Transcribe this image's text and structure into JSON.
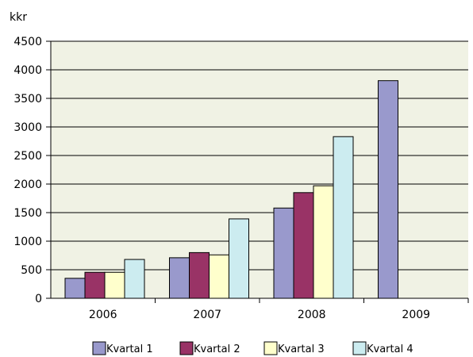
{
  "chart_data": {
    "type": "bar",
    "ylabel": "kkr",
    "categories": [
      "2006",
      "2007",
      "2008",
      "2009"
    ],
    "series": [
      {
        "name": "Kvartal 1",
        "values": [
          350,
          710,
          1580,
          3810
        ]
      },
      {
        "name": "Kvartal 2",
        "values": [
          455,
          800,
          1850,
          null
        ]
      },
      {
        "name": "Kvartal 3",
        "values": [
          455,
          760,
          1970,
          null
        ]
      },
      {
        "name": "Kvartal 4",
        "values": [
          680,
          1390,
          2830,
          null
        ]
      }
    ],
    "ylim": [
      0,
      4500
    ],
    "yticks": [
      0,
      500,
      1000,
      1500,
      2000,
      2500,
      3000,
      3500,
      4000,
      4500
    ],
    "grid": true,
    "legend_position": "bottom",
    "colors": {
      "series": [
        "#9999cc",
        "#993366",
        "#ffffcc",
        "#ccecf0"
      ],
      "plot_background": "#f0f2e4",
      "gridline": "#000000"
    }
  }
}
